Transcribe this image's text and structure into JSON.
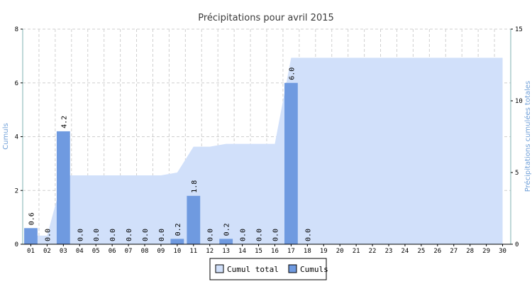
{
  "chart_data": {
    "type": "bar",
    "title": "Précipitations pour avril 2015",
    "categories": [
      "01",
      "02",
      "03",
      "04",
      "05",
      "06",
      "07",
      "08",
      "09",
      "10",
      "11",
      "12",
      "13",
      "14",
      "15",
      "16",
      "17",
      "18",
      "19",
      "20",
      "21",
      "22",
      "23",
      "24",
      "25",
      "26",
      "27",
      "28",
      "29",
      "30"
    ],
    "series": [
      {
        "name": "Cumuls",
        "type": "bar",
        "axis": "left",
        "color": "#6f9ae0",
        "values": [
          0.6,
          0.0,
          4.2,
          0.0,
          0.0,
          0.0,
          0.0,
          0.0,
          0.0,
          0.2,
          1.8,
          0.0,
          0.2,
          0.0,
          0.0,
          0.0,
          6.0,
          0.0,
          null,
          null,
          null,
          null,
          null,
          null,
          null,
          null,
          null,
          null,
          null,
          null
        ],
        "data_labels": [
          "0.6",
          "0.0",
          "4.2",
          "0.0",
          "0.0",
          "0.0",
          "0.0",
          "0.0",
          "0.0",
          "0.2",
          "1.8",
          "0.0",
          "0.2",
          "0.0",
          "0.0",
          "0.0",
          "6.0",
          "0.0"
        ]
      },
      {
        "name": "Cumul total",
        "type": "area",
        "axis": "right",
        "color": "#d1e0fa",
        "values": [
          0.6,
          0.6,
          4.8,
          4.8,
          4.8,
          4.8,
          4.8,
          4.8,
          4.8,
          5.0,
          6.8,
          6.8,
          7.0,
          7.0,
          7.0,
          7.0,
          13.0,
          13.0,
          13.0,
          13.0,
          13.0,
          13.0,
          13.0,
          13.0,
          13.0,
          13.0,
          13.0,
          13.0,
          13.0,
          13.0
        ]
      }
    ],
    "ylabel": "Cumuls",
    "ylim": [
      0,
      8
    ],
    "yticks": [
      0,
      2,
      4,
      6,
      8
    ],
    "y2label": "Précipitations cumulées totales",
    "y2lim": [
      0,
      15
    ],
    "y2ticks": [
      0,
      5,
      10,
      15
    ],
    "grid": true,
    "legend": {
      "position": "bottom",
      "items": [
        {
          "label": "Cumul total",
          "color": "#d1e0fa"
        },
        {
          "label": "Cumuls",
          "color": "#6f9ae0"
        }
      ]
    }
  }
}
